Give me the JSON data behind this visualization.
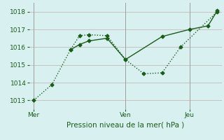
{
  "background_color": "#d8f0f0",
  "grid_color": "#c8b8b8",
  "line_color": "#1a5c1a",
  "xlabel": "Pression niveau de la mer( hPa )",
  "ylim": [
    1012.5,
    1018.5
  ],
  "yticks": [
    1013,
    1014,
    1015,
    1016,
    1017,
    1018
  ],
  "day_labels": [
    "Mer",
    "Ven",
    "Jeu"
  ],
  "day_positions": [
    0.0,
    10.0,
    17.0
  ],
  "vline_positions": [
    0.0,
    10.0,
    17.0
  ],
  "line1_x": [
    0,
    2,
    4,
    5,
    6,
    8,
    10,
    12,
    14,
    16,
    20
  ],
  "line1_y": [
    1013.0,
    1013.9,
    1015.85,
    1016.65,
    1016.7,
    1016.65,
    1015.3,
    1014.5,
    1014.55,
    1016.0,
    1018.0
  ],
  "line1_style": "dotted",
  "line2_x": [
    4,
    5,
    6,
    8,
    10,
    14,
    17,
    19,
    20
  ],
  "line2_y": [
    1015.85,
    1016.15,
    1016.35,
    1016.5,
    1015.3,
    1016.6,
    1017.0,
    1017.2,
    1018.05
  ],
  "line2_style": "solid",
  "marker": "D",
  "markersize": 2.5,
  "linewidth": 1.0,
  "xlabel_fontsize": 7.5,
  "tick_fontsize": 6.5
}
